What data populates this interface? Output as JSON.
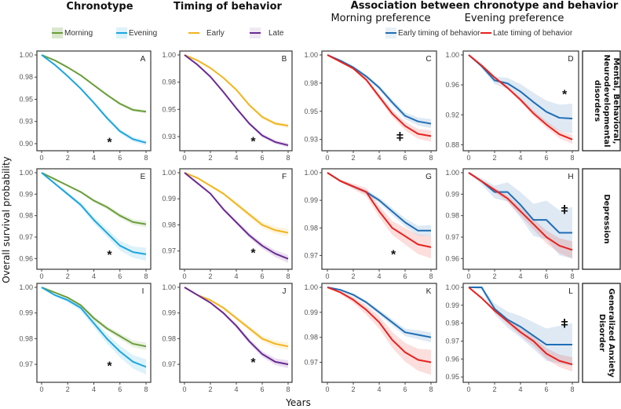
{
  "titles": {
    "chronotype": "Chronotype",
    "timing": "Timing of behavior",
    "association": "Association between chronotype  and behavior",
    "morning_pref": "Morning preference",
    "evening_pref": "Evening preference"
  },
  "legend": {
    "morning": "Morning",
    "evening": "Evening",
    "early": "Early",
    "late": "Late",
    "early_timing": "Early timing of behavior",
    "late_timing": "Late timing of behavior"
  },
  "colors": {
    "morning": "#6a9e3a",
    "evening": "#1aa6e0",
    "early": "#f2b51c",
    "late": "#6a2a94",
    "early_timing": "#1f6db5",
    "late_timing": "#e8221e"
  },
  "row_labels": [
    [
      "Mental, Behavioral,",
      "Neurodevelopmental",
      "disorders"
    ],
    [
      "Depression"
    ],
    [
      "Generalized Anxiety",
      "Disorder"
    ]
  ],
  "xlabel": "Years",
  "ylabel": "Overall survival probability",
  "chart_data": [
    {
      "type": "line",
      "panel": "A",
      "x": [
        0,
        1,
        2,
        3,
        4,
        5,
        6,
        7,
        8
      ],
      "xticks": [
        0,
        2,
        4,
        6,
        8
      ],
      "ylim": [
        0.892,
        1.003
      ],
      "yticks": [
        1.0,
        0.975,
        0.95,
        0.925,
        0.9
      ],
      "ytick_labels": [
        "1.00",
        "0.98",
        "0.95",
        "0.93",
        "0.90"
      ],
      "series": [
        {
          "name": "Morning",
          "color": "#6a9e3a",
          "ci": 0.002,
          "values": [
            1,
            0.994,
            0.986,
            0.977,
            0.966,
            0.955,
            0.945,
            0.938,
            0.936
          ]
        },
        {
          "name": "Evening",
          "color": "#1aa6e0",
          "ci": 0.003,
          "values": [
            1,
            0.989,
            0.976,
            0.962,
            0.946,
            0.929,
            0.914,
            0.905,
            0.901
          ]
        }
      ],
      "annotation": {
        "text": "*",
        "x": 5.2,
        "y": 0.902
      }
    },
    {
      "type": "line",
      "panel": "B",
      "x": [
        0,
        1,
        2,
        3,
        4,
        5,
        6,
        7,
        8
      ],
      "xticks": [
        0,
        2,
        4,
        6,
        8
      ],
      "ylim": [
        0.912,
        1.003
      ],
      "yticks": [
        1.0,
        0.975,
        0.95,
        0.925
      ],
      "ytick_labels": [
        "1.00",
        "0.98",
        "0.95",
        "0.93"
      ],
      "series": [
        {
          "name": "Early",
          "color": "#f2b51c",
          "ci": 0.002,
          "values": [
            1,
            0.995,
            0.988,
            0.979,
            0.968,
            0.954,
            0.943,
            0.937,
            0.935
          ]
        },
        {
          "name": "Late",
          "color": "#6a2a94",
          "ci": 0.002,
          "values": [
            1,
            0.991,
            0.98,
            0.966,
            0.951,
            0.937,
            0.926,
            0.92,
            0.917
          ]
        }
      ],
      "annotation": {
        "text": "*",
        "x": 5.3,
        "y": 0.921
      }
    },
    {
      "type": "line",
      "panel": "C",
      "x": [
        0,
        1,
        2,
        3,
        4,
        5,
        6,
        7,
        8
      ],
      "xticks": [
        0,
        2,
        4,
        6,
        8
      ],
      "ylim": [
        0.915,
        1.003
      ],
      "yticks": [
        1.0,
        0.975,
        0.95,
        0.925
      ],
      "ytick_labels": [
        "1.00",
        "0.98",
        "0.95",
        "0.93"
      ],
      "series": [
        {
          "name": "Early timing of behavior",
          "color": "#1f6db5",
          "ci": 0.004,
          "values": [
            1,
            0.995,
            0.989,
            0.981,
            0.971,
            0.958,
            0.946,
            0.941,
            0.939
          ]
        },
        {
          "name": "Late timing of behavior",
          "color": "#e8221e",
          "ci": 0.005,
          "values": [
            1,
            0.994,
            0.988,
            0.978,
            0.963,
            0.948,
            0.937,
            0.93,
            0.928
          ]
        }
      ],
      "annotation": {
        "text": "ǂ",
        "x": 5.6,
        "y": 0.928
      }
    },
    {
      "type": "line",
      "panel": "D",
      "x": [
        0,
        1,
        2,
        3,
        4,
        5,
        6,
        7,
        8
      ],
      "xticks": [
        0,
        2,
        4,
        6,
        8
      ],
      "ylim": [
        0.872,
        1.003
      ],
      "yticks": [
        1.0,
        0.96,
        0.92,
        0.88
      ],
      "ytick_labels": [
        "1.00",
        "0.96",
        "0.92",
        "0.88"
      ],
      "series": [
        {
          "name": "Early timing of behavior",
          "color": "#1f6db5",
          "ci": 0.02,
          "values": [
            1,
            0.985,
            0.966,
            0.962,
            0.951,
            0.937,
            0.924,
            0.916,
            0.915
          ]
        },
        {
          "name": "Late timing of behavior",
          "color": "#e8221e",
          "ci": 0.006,
          "values": [
            1,
            0.986,
            0.97,
            0.956,
            0.94,
            0.922,
            0.907,
            0.894,
            0.887
          ]
        }
      ],
      "annotation": {
        "text": "*",
        "x": 7.4,
        "y": 0.948
      }
    },
    {
      "type": "line",
      "panel": "E",
      "x": [
        0,
        1,
        2,
        3,
        4,
        5,
        6,
        7,
        8
      ],
      "xticks": [
        0,
        2,
        4,
        6,
        8
      ],
      "ylim": [
        0.955,
        1.001
      ],
      "yticks": [
        1.0,
        0.99,
        0.98,
        0.97,
        0.96
      ],
      "ytick_labels": [
        "1.00",
        "0.99",
        "0.98",
        "0.97",
        "0.96"
      ],
      "series": [
        {
          "name": "Morning",
          "color": "#6a9e3a",
          "ci": 0.0015,
          "values": [
            1,
            0.997,
            0.994,
            0.991,
            0.987,
            0.984,
            0.98,
            0.977,
            0.976
          ]
        },
        {
          "name": "Evening",
          "color": "#1aa6e0",
          "ci": 0.003,
          "values": [
            1,
            0.995,
            0.99,
            0.985,
            0.978,
            0.972,
            0.966,
            0.963,
            0.962
          ]
        }
      ],
      "annotation": {
        "text": "*",
        "x": 5.2,
        "y": 0.962
      }
    },
    {
      "type": "line",
      "panel": "F",
      "x": [
        0,
        1,
        2,
        3,
        4,
        5,
        6,
        7,
        8
      ],
      "xticks": [
        0,
        2,
        4,
        6,
        8
      ],
      "ylim": [
        0.963,
        1.001
      ],
      "yticks": [
        1.0,
        0.99,
        0.98,
        0.97
      ],
      "ytick_labels": [
        "1.00",
        "0.99",
        "0.98",
        "0.97"
      ],
      "series": [
        {
          "name": "Early",
          "color": "#f2b51c",
          "ci": 0.0015,
          "values": [
            1,
            0.998,
            0.995,
            0.992,
            0.988,
            0.984,
            0.98,
            0.978,
            0.977
          ]
        },
        {
          "name": "Late",
          "color": "#6a2a94",
          "ci": 0.0015,
          "values": [
            1,
            0.996,
            0.992,
            0.986,
            0.981,
            0.976,
            0.972,
            0.969,
            0.967
          ]
        }
      ],
      "annotation": {
        "text": "*",
        "x": 5.3,
        "y": 0.9695
      }
    },
    {
      "type": "line",
      "panel": "G",
      "x": [
        0,
        1,
        2,
        3,
        4,
        5,
        6,
        7,
        8
      ],
      "xticks": [
        0,
        2,
        4,
        6,
        8
      ],
      "ylim": [
        0.965,
        1.001
      ],
      "yticks": [
        1.0,
        0.99,
        0.98,
        0.97
      ],
      "ytick_labels": [
        "1.00",
        "0.99",
        "0.98",
        "0.97"
      ],
      "series": [
        {
          "name": "Early timing of behavior",
          "color": "#1f6db5",
          "ci": 0.002,
          "values": [
            1,
            0.997,
            0.995,
            0.993,
            0.99,
            0.986,
            0.982,
            0.979,
            0.979
          ]
        },
        {
          "name": "Late timing of behavior",
          "color": "#e8221e",
          "ci": 0.004,
          "values": [
            1,
            0.997,
            0.995,
            0.993,
            0.986,
            0.98,
            0.977,
            0.974,
            0.973
          ]
        }
      ],
      "annotation": {
        "text": "*",
        "x": 5.1,
        "y": 0.9705
      }
    },
    {
      "type": "line",
      "panel": "H",
      "x": [
        0,
        1,
        2,
        3,
        4,
        5,
        6,
        7,
        8
      ],
      "xticks": [
        0,
        2,
        4,
        6,
        8
      ],
      "ylim": [
        0.955,
        1.001
      ],
      "yticks": [
        1.0,
        0.99,
        0.98,
        0.97,
        0.96
      ],
      "ytick_labels": [
        "1.00",
        "0.99",
        "0.98",
        "0.97",
        "0.96"
      ],
      "series": [
        {
          "name": "Early timing of behavior",
          "color": "#1f6db5",
          "ci": 0.012,
          "values": [
            1,
            0.996,
            0.991,
            0.991,
            0.985,
            0.978,
            0.978,
            0.972,
            0.972
          ]
        },
        {
          "name": "Late timing of behavior",
          "color": "#e8221e",
          "ci": 0.004,
          "values": [
            1,
            0.996,
            0.992,
            0.988,
            0.982,
            0.976,
            0.97,
            0.966,
            0.964
          ]
        }
      ],
      "annotation": {
        "text": "ǂ",
        "x": 7.4,
        "y": 0.983
      }
    },
    {
      "type": "line",
      "panel": "I",
      "x": [
        0,
        1,
        2,
        3,
        4,
        5,
        6,
        7,
        8
      ],
      "xticks": [
        0,
        2,
        4,
        6,
        8
      ],
      "ylim": [
        0.963,
        1.001
      ],
      "yticks": [
        1.0,
        0.99,
        0.98,
        0.97
      ],
      "ytick_labels": [
        "1.00",
        "0.99",
        "0.98",
        "0.97"
      ],
      "series": [
        {
          "name": "Morning",
          "color": "#6a9e3a",
          "ci": 0.0015,
          "values": [
            1,
            0.998,
            0.996,
            0.993,
            0.988,
            0.984,
            0.981,
            0.978,
            0.977
          ]
        },
        {
          "name": "Evening",
          "color": "#1aa6e0",
          "ci": 0.003,
          "values": [
            1,
            0.997,
            0.995,
            0.992,
            0.986,
            0.98,
            0.975,
            0.971,
            0.969
          ]
        }
      ],
      "annotation": {
        "text": "*",
        "x": 5.2,
        "y": 0.9695
      }
    },
    {
      "type": "line",
      "panel": "J",
      "x": [
        0,
        1,
        2,
        3,
        4,
        5,
        6,
        7,
        8
      ],
      "xticks": [
        0,
        2,
        4,
        6,
        8
      ],
      "ylim": [
        0.963,
        1.001
      ],
      "yticks": [
        1.0,
        0.99,
        0.98,
        0.97
      ],
      "ytick_labels": [
        "1.00",
        "0.99",
        "0.98",
        "0.97"
      ],
      "series": [
        {
          "name": "Early",
          "color": "#f2b51c",
          "ci": 0.0015,
          "values": [
            1,
            0.997,
            0.995,
            0.992,
            0.988,
            0.984,
            0.98,
            0.978,
            0.977
          ]
        },
        {
          "name": "Late",
          "color": "#6a2a94",
          "ci": 0.0015,
          "values": [
            1,
            0.997,
            0.994,
            0.99,
            0.985,
            0.979,
            0.974,
            0.971,
            0.97
          ]
        }
      ],
      "annotation": {
        "text": "*",
        "x": 5.3,
        "y": 0.971
      }
    },
    {
      "type": "line",
      "panel": "K",
      "x": [
        0,
        1,
        2,
        3,
        4,
        5,
        6,
        7,
        8
      ],
      "xticks": [
        0,
        2,
        4,
        6,
        8
      ],
      "ylim": [
        0.962,
        1.001
      ],
      "yticks": [
        1.0,
        0.99,
        0.98,
        0.97
      ],
      "ytick_labels": [
        "1.00",
        "0.99",
        "0.98",
        "0.97"
      ],
      "series": [
        {
          "name": "Early timing of behavior",
          "color": "#1f6db5",
          "ci": 0.002,
          "values": [
            1,
            0.999,
            0.997,
            0.994,
            0.99,
            0.986,
            0.982,
            0.981,
            0.98
          ]
        },
        {
          "name": "Late timing of behavior",
          "color": "#e8221e",
          "ci": 0.005,
          "values": [
            1,
            0.998,
            0.995,
            0.991,
            0.986,
            0.979,
            0.974,
            0.971,
            0.97
          ]
        }
      ],
      "annotation": null
    },
    {
      "type": "line",
      "panel": "L",
      "x": [
        0,
        1,
        2,
        3,
        4,
        5,
        6,
        7,
        8
      ],
      "xticks": [
        0,
        2,
        4,
        6,
        8
      ],
      "ylim": [
        0.947,
        1.001
      ],
      "yticks": [
        1.0,
        0.99,
        0.98,
        0.97,
        0.96,
        0.95
      ],
      "ytick_labels": [
        "1.00",
        "0.99",
        "0.98",
        "0.97",
        "0.96",
        "0.95"
      ],
      "series": [
        {
          "name": "Early timing of behavior",
          "color": "#1f6db5",
          "ci": 0.012,
          "values": [
            1,
            1,
            0.988,
            0.982,
            0.978,
            0.973,
            0.968,
            0.968,
            0.968
          ]
        },
        {
          "name": "Late timing of behavior",
          "color": "#e8221e",
          "ci": 0.004,
          "values": [
            1,
            0.994,
            0.987,
            0.981,
            0.975,
            0.97,
            0.963,
            0.959,
            0.957
          ]
        }
      ],
      "annotation": {
        "text": "ǂ",
        "x": 7.4,
        "y": 0.98
      }
    }
  ]
}
